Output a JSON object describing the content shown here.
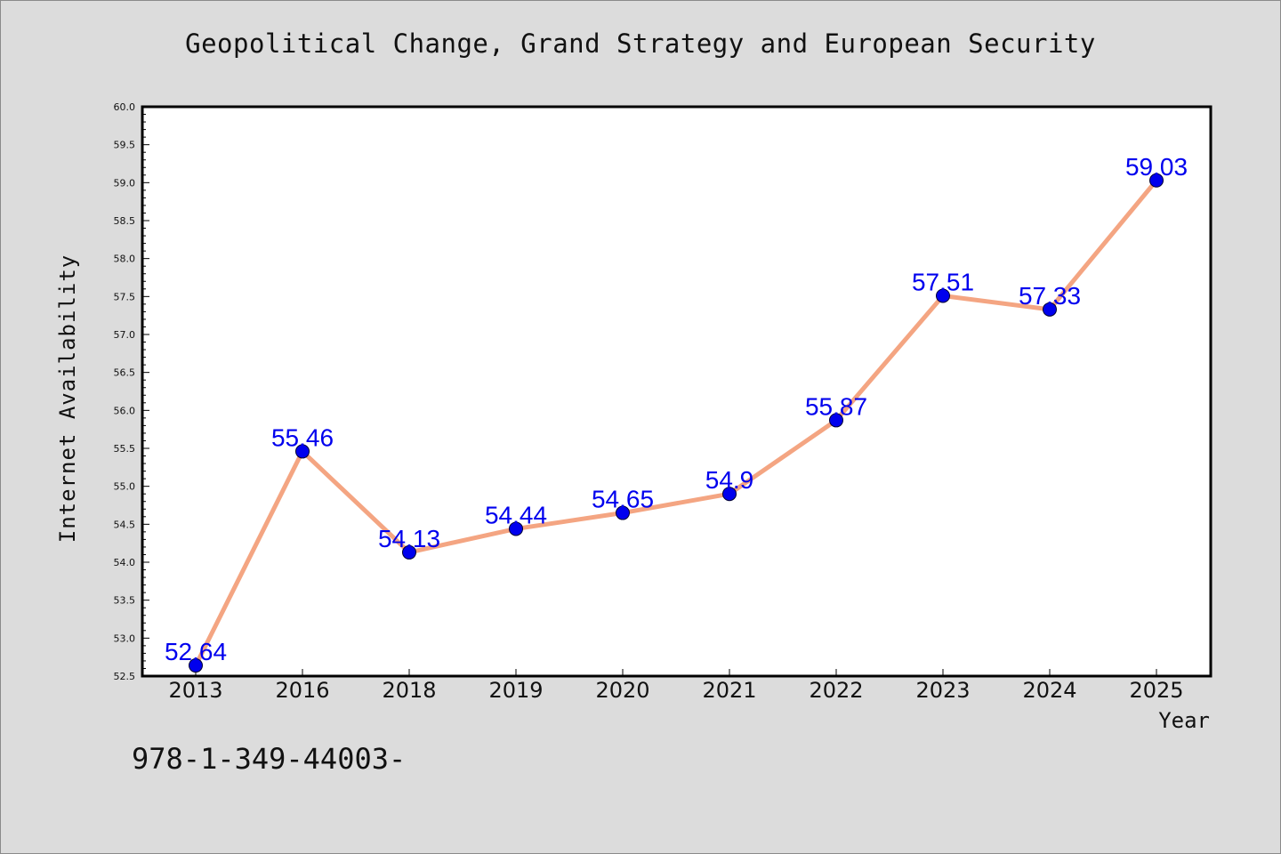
{
  "chart_data": {
    "type": "line",
    "title": "Geopolitical Change, Grand Strategy and European Security",
    "xlabel": "Year",
    "ylabel": "Internet Availability",
    "categories": [
      "2013",
      "2016",
      "2018",
      "2019",
      "2020",
      "2021",
      "2022",
      "2023",
      "2024",
      "2025"
    ],
    "series": [
      {
        "values": [
          52.64,
          55.46,
          54.13,
          54.44,
          54.65,
          54.9,
          55.87,
          57.51,
          57.33,
          59.03
        ],
        "labels": [
          "52.64",
          "55.46",
          "54.13",
          "54.44",
          "54.65",
          "54.9",
          "55.87",
          "57.51",
          "57.33",
          "59.03"
        ],
        "line_color": "#f4a582",
        "marker_color": "#0000ee"
      }
    ],
    "ylim": [
      52.5,
      60.0
    ],
    "yticks": [
      "52.5",
      "53.0",
      "53.5",
      "54.0",
      "54.5",
      "55.0",
      "55.5",
      "56.0",
      "56.5",
      "57.0",
      "57.5",
      "58.0",
      "58.5",
      "59.0",
      "59.5",
      "60.0"
    ],
    "grid": false,
    "legend": "none"
  },
  "footnote": "978-1-349-44003-",
  "colors": {
    "background": "#dcdcdc",
    "plot_area": "#ffffff",
    "line": "#f4a582",
    "marker": "#0000ee",
    "data_label": "#0000ee"
  }
}
